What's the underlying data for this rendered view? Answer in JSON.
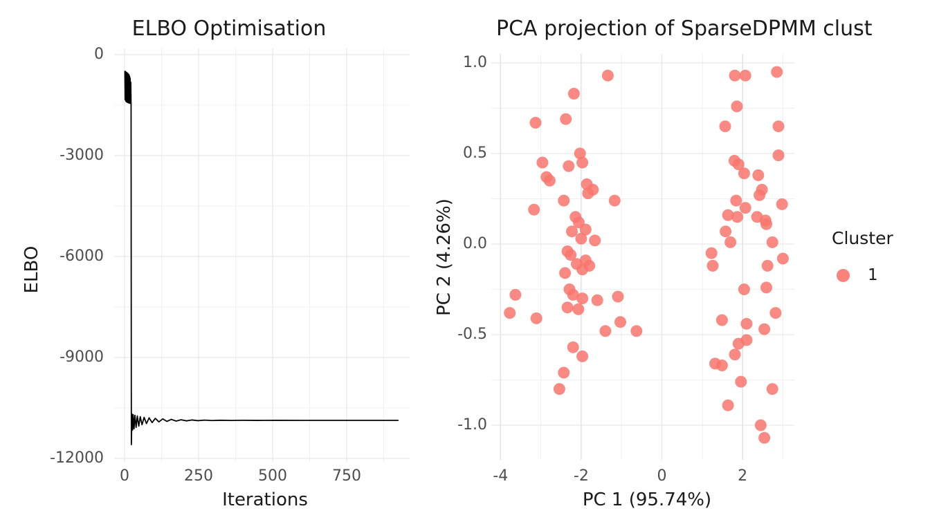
{
  "figure": {
    "background": "#FFFFFF",
    "title_color": "#1A1A1A",
    "tick_label_color": "#4D4D4D",
    "grid_major_color": "#E3E3E3",
    "grid_minor_color": "#F0F0F0"
  },
  "chart_data": [
    {
      "type": "line",
      "title": "ELBO Optimisation",
      "xlabel": "Iterations",
      "ylabel": "ELBO",
      "xlim": [
        -35,
        960
      ],
      "ylim": [
        -12100,
        190
      ],
      "grid": true,
      "x_tick_labels": [
        "0",
        "250",
        "500",
        "750"
      ],
      "x_tick_values": [
        0,
        250,
        500,
        750
      ],
      "x_minor_values": [
        125,
        375,
        625,
        875
      ],
      "y_tick_labels": [
        "0",
        "-3000",
        "-6000",
        "-9000",
        "-12000"
      ],
      "y_tick_values": [
        0,
        -3000,
        -6000,
        -9000,
        -12000
      ],
      "y_minor_values": [
        -1500,
        -4500,
        -7500,
        -10500
      ],
      "line_color": "#000000",
      "series": [
        {
          "name": "ELBO",
          "points": [
            [
              1,
              -480
            ],
            [
              2,
              -1340
            ],
            [
              3,
              -500
            ],
            [
              4,
              -1380
            ],
            [
              5,
              -520
            ],
            [
              6,
              -1400
            ],
            [
              7,
              -530
            ],
            [
              8,
              -1410
            ],
            [
              9,
              -545
            ],
            [
              10,
              -1420
            ],
            [
              11,
              -560
            ],
            [
              12,
              -1430
            ],
            [
              13,
              -580
            ],
            [
              14,
              -1435
            ],
            [
              15,
              -600
            ],
            [
              16,
              -1440
            ],
            [
              17,
              -640
            ],
            [
              18,
              -1445
            ],
            [
              19,
              -700
            ],
            [
              20,
              -1450
            ],
            [
              21,
              -820
            ],
            [
              22,
              -1460
            ],
            [
              23,
              -11590
            ],
            [
              25,
              -10680
            ],
            [
              27,
              -11160
            ],
            [
              29,
              -10700
            ],
            [
              32,
              -11120
            ],
            [
              35,
              -10720
            ],
            [
              39,
              -11080
            ],
            [
              43,
              -10740
            ],
            [
              48,
              -11040
            ],
            [
              53,
              -10760
            ],
            [
              59,
              -11000
            ],
            [
              66,
              -10780
            ],
            [
              74,
              -10965
            ],
            [
              83,
              -10795
            ],
            [
              93,
              -10935
            ],
            [
              104,
              -10810
            ],
            [
              116,
              -10915
            ],
            [
              129,
              -10825
            ],
            [
              143,
              -10900
            ],
            [
              158,
              -10840
            ],
            [
              174,
              -10890
            ],
            [
              191,
              -10852
            ],
            [
              209,
              -10884
            ],
            [
              228,
              -10858
            ],
            [
              248,
              -10879
            ],
            [
              270,
              -10862
            ],
            [
              295,
              -10875
            ],
            [
              325,
              -10866
            ],
            [
              360,
              -10872
            ],
            [
              400,
              -10868
            ],
            [
              450,
              -10871
            ],
            [
              520,
              -10869
            ],
            [
              600,
              -10870
            ],
            [
              700,
              -10870
            ],
            [
              800,
              -10870
            ],
            [
              925,
              -10870
            ]
          ]
        }
      ]
    },
    {
      "type": "scatter",
      "title": "PCA projection of SparseDPMM clust",
      "xlabel": "PC 1 (95.74%)",
      "ylabel": "PC 2 (4.26%)",
      "xlim": [
        -4.25,
        3.3
      ],
      "ylim": [
        -1.19,
        1.05
      ],
      "grid": true,
      "x_tick_labels": [
        "-4",
        "-2",
        "0",
        "2"
      ],
      "x_tick_values": [
        -4,
        -2,
        0,
        2
      ],
      "x_minor_values": [
        -3,
        -1,
        1,
        3
      ],
      "y_tick_labels": [
        "1.0",
        "0.5",
        "0.0",
        "-0.5",
        "-1.0"
      ],
      "y_tick_values": [
        1.0,
        0.5,
        0.0,
        -0.5,
        -1.0
      ],
      "y_minor_values": [
        0.75,
        0.25,
        -0.25,
        -0.75
      ],
      "point_color": "#F8766D",
      "point_opacity": 0.85,
      "point_radius_px": 8.5,
      "legend": {
        "title": "Cluster",
        "position": "right",
        "items": [
          {
            "label": "1",
            "color": "#F8766D"
          }
        ]
      },
      "series": [
        {
          "name": "1",
          "color": "#F8766D",
          "points": [
            [
              -1.34,
              0.93
            ],
            [
              -2.18,
              0.83
            ],
            [
              -3.13,
              0.67
            ],
            [
              -2.38,
              0.69
            ],
            [
              -2.03,
              0.5
            ],
            [
              -1.97,
              0.45
            ],
            [
              -2.96,
              0.45
            ],
            [
              -2.31,
              0.43
            ],
            [
              -2.86,
              0.37
            ],
            [
              -2.78,
              0.35
            ],
            [
              -1.86,
              0.33
            ],
            [
              -1.71,
              0.3
            ],
            [
              -1.83,
              0.28
            ],
            [
              -2.43,
              0.24
            ],
            [
              -1.17,
              0.24
            ],
            [
              -3.17,
              0.19
            ],
            [
              -2.14,
              0.15
            ],
            [
              -2.06,
              0.12
            ],
            [
              -2.23,
              0.07
            ],
            [
              -1.89,
              0.08
            ],
            [
              -2.0,
              0.03
            ],
            [
              -1.66,
              0.02
            ],
            [
              -2.34,
              -0.04
            ],
            [
              -2.26,
              -0.06
            ],
            [
              -2.11,
              -0.11
            ],
            [
              -1.89,
              -0.09
            ],
            [
              -1.8,
              -0.12
            ],
            [
              -1.97,
              -0.14
            ],
            [
              -2.4,
              -0.16
            ],
            [
              -2.29,
              -0.25
            ],
            [
              -2.2,
              -0.28
            ],
            [
              -1.97,
              -0.3
            ],
            [
              -1.6,
              -0.31
            ],
            [
              -1.09,
              -0.29
            ],
            [
              -3.63,
              -0.28
            ],
            [
              -3.77,
              -0.38
            ],
            [
              -3.11,
              -0.41
            ],
            [
              -2.34,
              -0.35
            ],
            [
              -2.07,
              -0.36
            ],
            [
              -1.03,
              -0.43
            ],
            [
              -1.4,
              -0.48
            ],
            [
              -0.63,
              -0.48
            ],
            [
              -2.2,
              -0.57
            ],
            [
              -1.97,
              -0.62
            ],
            [
              -2.43,
              -0.71
            ],
            [
              -2.54,
              -0.8
            ],
            [
              1.81,
              0.93
            ],
            [
              2.07,
              0.93
            ],
            [
              2.85,
              0.95
            ],
            [
              1.86,
              0.76
            ],
            [
              1.57,
              0.65
            ],
            [
              2.89,
              0.65
            ],
            [
              2.89,
              0.49
            ],
            [
              1.8,
              0.46
            ],
            [
              1.9,
              0.44
            ],
            [
              2.04,
              0.39
            ],
            [
              2.39,
              0.38
            ],
            [
              2.48,
              0.3
            ],
            [
              2.42,
              0.27
            ],
            [
              1.84,
              0.24
            ],
            [
              2.07,
              0.2
            ],
            [
              2.98,
              0.22
            ],
            [
              1.64,
              0.16
            ],
            [
              1.87,
              0.15
            ],
            [
              2.36,
              0.15
            ],
            [
              2.57,
              0.13
            ],
            [
              2.59,
              0.11
            ],
            [
              1.58,
              0.07
            ],
            [
              1.7,
              0.01
            ],
            [
              1.23,
              -0.05
            ],
            [
              1.26,
              -0.12
            ],
            [
              2.74,
              0.01
            ],
            [
              2.62,
              -0.12
            ],
            [
              3.0,
              -0.08
            ],
            [
              2.04,
              -0.25
            ],
            [
              2.59,
              -0.24
            ],
            [
              2.82,
              -0.38
            ],
            [
              1.49,
              -0.42
            ],
            [
              2.1,
              -0.44
            ],
            [
              2.54,
              -0.47
            ],
            [
              2.1,
              -0.53
            ],
            [
              1.9,
              -0.55
            ],
            [
              1.81,
              -0.61
            ],
            [
              1.32,
              -0.66
            ],
            [
              1.49,
              -0.67
            ],
            [
              1.96,
              -0.76
            ],
            [
              2.74,
              -0.8
            ],
            [
              1.64,
              -0.89
            ],
            [
              2.45,
              -1.0
            ],
            [
              2.54,
              -1.07
            ]
          ]
        }
      ]
    }
  ]
}
